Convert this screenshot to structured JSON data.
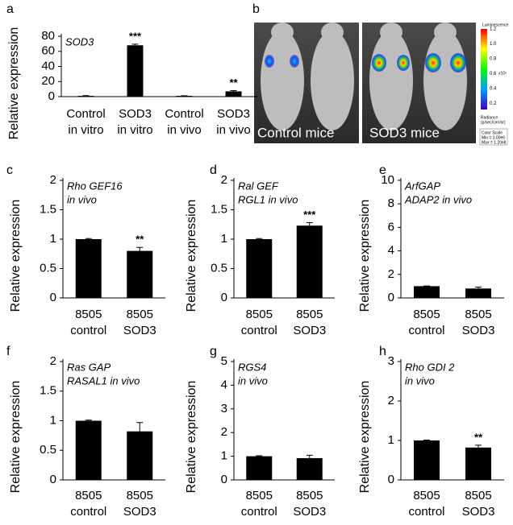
{
  "chart_data": [
    {
      "type": "bar",
      "panel": "a",
      "title_lines": [
        "SOD3"
      ],
      "ylabel": "Relative expression",
      "categories": [
        [
          "Control",
          "in vitro"
        ],
        [
          "SOD3",
          "in vitro"
        ],
        [
          "Control",
          "in vivo"
        ],
        [
          "SOD3",
          "in vivo"
        ]
      ],
      "values": [
        1,
        68,
        1,
        7
      ],
      "errors": [
        0.3,
        1.5,
        0.2,
        1
      ],
      "significance": [
        null,
        "***",
        null,
        "**"
      ],
      "color": "#000000",
      "ylim": [
        0,
        80
      ],
      "yticks": [
        0,
        20,
        40,
        60,
        80
      ]
    },
    {
      "type": "bar",
      "panel": "c",
      "title_lines": [
        "Rho GEF16",
        "in vivo"
      ],
      "ylabel": "Relative expression",
      "categories": [
        [
          "8505",
          "control"
        ],
        [
          "8505",
          "SOD3"
        ]
      ],
      "values": [
        1,
        0.8
      ],
      "errors": [
        0.01,
        0.06
      ],
      "significance": [
        null,
        "**"
      ],
      "color": "#000000",
      "ylim": [
        0,
        2
      ],
      "yticks": [
        0,
        0.5,
        1,
        1.5,
        2
      ]
    },
    {
      "type": "bar",
      "panel": "d",
      "title_lines": [
        "Ral GEF",
        "RGL1 in vivo"
      ],
      "ylabel": "Relative expression",
      "categories": [
        [
          "8505",
          "control"
        ],
        [
          "8505",
          "SOD3"
        ]
      ],
      "values": [
        1,
        1.23
      ],
      "errors": [
        0.01,
        0.05
      ],
      "significance": [
        null,
        "***"
      ],
      "color": "#000000",
      "ylim": [
        0,
        2
      ],
      "yticks": [
        0,
        0.5,
        1,
        1.5,
        2
      ]
    },
    {
      "type": "bar",
      "panel": "e",
      "title_lines": [
        "ArfGAP",
        "ADAP2 in vivo"
      ],
      "ylabel": "Relative expression",
      "categories": [
        [
          "8505",
          "control"
        ],
        [
          "8505",
          "SOD3"
        ]
      ],
      "values": [
        1,
        0.8
      ],
      "errors": [
        0.02,
        0.12
      ],
      "significance": [
        null,
        null
      ],
      "color": "#000000",
      "ylim": [
        0,
        10
      ],
      "yticks": [
        0,
        2,
        4,
        6,
        8,
        10
      ]
    },
    {
      "type": "bar",
      "panel": "f",
      "title_lines": [
        "Ras GAP",
        "RASAL1 in vivo"
      ],
      "ylabel": "Relative expression",
      "categories": [
        [
          "8505",
          "control"
        ],
        [
          "8505",
          "SOD3"
        ]
      ],
      "values": [
        1,
        0.82
      ],
      "errors": [
        0.01,
        0.15
      ],
      "significance": [
        null,
        null
      ],
      "color": "#000000",
      "ylim": [
        0,
        2
      ],
      "yticks": [
        0,
        0.5,
        1,
        1.5,
        2
      ]
    },
    {
      "type": "bar",
      "panel": "g",
      "title_lines": [
        "RGS4",
        "in vivo"
      ],
      "ylabel": "Relative expression",
      "categories": [
        [
          "8505",
          "control"
        ],
        [
          "8505",
          "SOD3"
        ]
      ],
      "values": [
        1,
        0.92
      ],
      "errors": [
        0.02,
        0.12
      ],
      "significance": [
        null,
        null
      ],
      "color": "#000000",
      "ylim": [
        0,
        5
      ],
      "yticks": [
        0,
        1,
        2,
        3,
        4,
        5
      ]
    },
    {
      "type": "bar",
      "panel": "h",
      "title_lines": [
        "Rho GDI 2",
        "in vivo"
      ],
      "ylabel": "Relative expression",
      "categories": [
        [
          "8505",
          "control"
        ],
        [
          "8505",
          "SOD3"
        ]
      ],
      "values": [
        1,
        0.82
      ],
      "errors": [
        0.01,
        0.06
      ],
      "significance": [
        null,
        "**"
      ],
      "color": "#000000",
      "ylim": [
        0,
        3
      ],
      "yticks": [
        0,
        1,
        2,
        3
      ]
    }
  ],
  "image_panel": {
    "panel": "b",
    "labels": [
      "Control mice",
      "SOD3 mice"
    ],
    "colorbar": {
      "title": "Luminescence",
      "ticks": [
        "1.2",
        "1.0",
        "0.8",
        "0.6",
        "0.4",
        "0.2"
      ],
      "exponent": "x10⁸",
      "unit_lines": [
        "Radiance",
        "(p/sec/cm²/sr)"
      ],
      "scale_lines": [
        "Color Scale",
        "Min = 3.00e6",
        "Max = 1.20e8"
      ]
    }
  }
}
